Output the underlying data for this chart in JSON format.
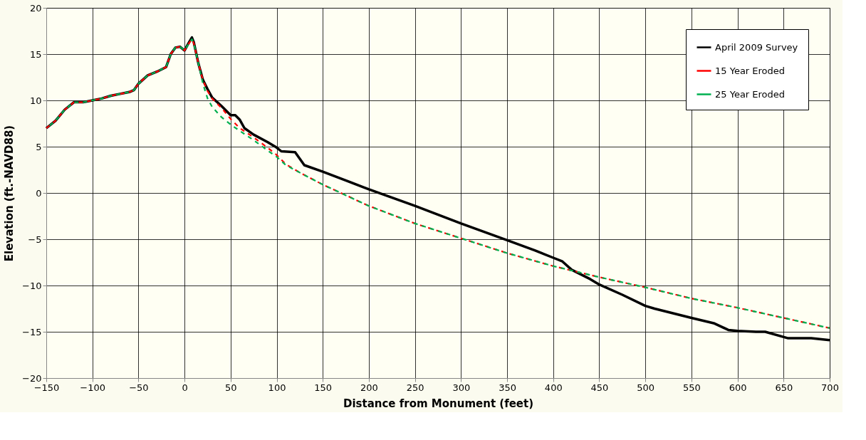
{
  "chart_data": {
    "type": "line",
    "xlabel": "Distance from Monument (feet)",
    "ylabel": "Elevation (ft.-NAVD88)",
    "xlim": [
      -150,
      700
    ],
    "ylim": [
      -20,
      20
    ],
    "xticks": [
      -150,
      -100,
      -50,
      0,
      50,
      100,
      150,
      200,
      250,
      300,
      350,
      400,
      450,
      500,
      550,
      600,
      650,
      700
    ],
    "yticks": [
      -20,
      -15,
      -10,
      -5,
      0,
      5,
      10,
      15,
      20
    ],
    "grid": true,
    "legend": "top right",
    "marker": "none",
    "series": [
      {
        "name": "April 2009 Survey",
        "color": "#000000",
        "line_style": "solid",
        "x": [
          -150,
          -140,
          -130,
          -120,
          -110,
          -100,
          -90,
          -80,
          -70,
          -60,
          -55,
          -50,
          -40,
          -30,
          -20,
          -15,
          -10,
          -5,
          0,
          5,
          8,
          10,
          15,
          20,
          25,
          30,
          40,
          50,
          55,
          60,
          65,
          75,
          90,
          100,
          105,
          120,
          130,
          150,
          200,
          250,
          300,
          350,
          380,
          400,
          410,
          420,
          440,
          450,
          475,
          500,
          510,
          550,
          575,
          590,
          600,
          620,
          630,
          655,
          680,
          700
        ],
        "values": [
          7,
          7.8,
          9,
          9.8,
          9.8,
          10,
          10.2,
          10.5,
          10.7,
          10.9,
          11.1,
          11.8,
          12.7,
          13.1,
          13.6,
          15,
          15.7,
          15.8,
          15.4,
          16.3,
          16.8,
          16.3,
          14,
          12.2,
          11.2,
          10.3,
          9.4,
          8.4,
          8.4,
          7.9,
          7,
          6.3,
          5.5,
          4.9,
          4.5,
          4.4,
          3,
          2.3,
          0.4,
          -1.4,
          -3.3,
          -5.1,
          -6.2,
          -7,
          -7.4,
          -8.3,
          -9.3,
          -9.9,
          -11,
          -12.2,
          -12.5,
          -13.5,
          -14.1,
          -14.8,
          -14.9,
          -15,
          -15,
          -15.7,
          -15.7,
          -15.9
        ]
      },
      {
        "name": "15 Year Eroded",
        "color": "#ff0000",
        "line_style": "dashed",
        "x": [
          -150,
          -140,
          -130,
          -120,
          -110,
          -100,
          -90,
          -80,
          -70,
          -60,
          -55,
          -50,
          -40,
          -30,
          -20,
          -15,
          -10,
          -5,
          0,
          5,
          8,
          10,
          15,
          20,
          25,
          30,
          40,
          50,
          60,
          75,
          90,
          100,
          110,
          125,
          150,
          200,
          250,
          300,
          350,
          400,
          450,
          500,
          550,
          600,
          650,
          700
        ],
        "values": [
          7,
          7.8,
          9,
          9.8,
          9.8,
          10,
          10.2,
          10.5,
          10.7,
          10.9,
          11.1,
          11.8,
          12.7,
          13.1,
          13.6,
          15,
          15.7,
          15.8,
          15.4,
          16.2,
          16.6,
          16.2,
          14,
          12.2,
          11,
          10.2,
          9.2,
          8,
          7,
          6,
          4.9,
          4.1,
          3.1,
          2.2,
          0.9,
          -1.4,
          -3.3,
          -4.9,
          -6.5,
          -7.9,
          -9.1,
          -10.2,
          -11.4,
          -12.4,
          -13.5,
          -14.6
        ]
      },
      {
        "name": "25 Year Eroded",
        "color": "#00b050",
        "line_style": "dashed",
        "x": [
          -150,
          -140,
          -130,
          -120,
          -110,
          -100,
          -90,
          -80,
          -70,
          -60,
          -55,
          -50,
          -40,
          -30,
          -20,
          -15,
          -10,
          -5,
          0,
          5,
          8,
          10,
          15,
          20,
          25,
          30,
          40,
          50,
          60,
          75,
          90,
          100,
          110,
          125,
          150,
          200,
          250,
          300,
          350,
          400,
          450,
          500,
          550,
          600,
          650,
          700
        ],
        "values": [
          7,
          7.8,
          9,
          9.8,
          9.8,
          10,
          10.2,
          10.5,
          10.7,
          10.9,
          11.1,
          11.8,
          12.7,
          13.1,
          13.6,
          15,
          15.7,
          15.8,
          15.4,
          16.2,
          16.6,
          16.2,
          14,
          11.8,
          10.2,
          9.3,
          8.2,
          7.4,
          6.7,
          5.7,
          4.6,
          3.9,
          3,
          2.2,
          0.9,
          -1.4,
          -3.3,
          -4.9,
          -6.5,
          -7.9,
          -9.1,
          -10.2,
          -11.4,
          -12.4,
          -13.5,
          -14.6
        ]
      }
    ]
  }
}
